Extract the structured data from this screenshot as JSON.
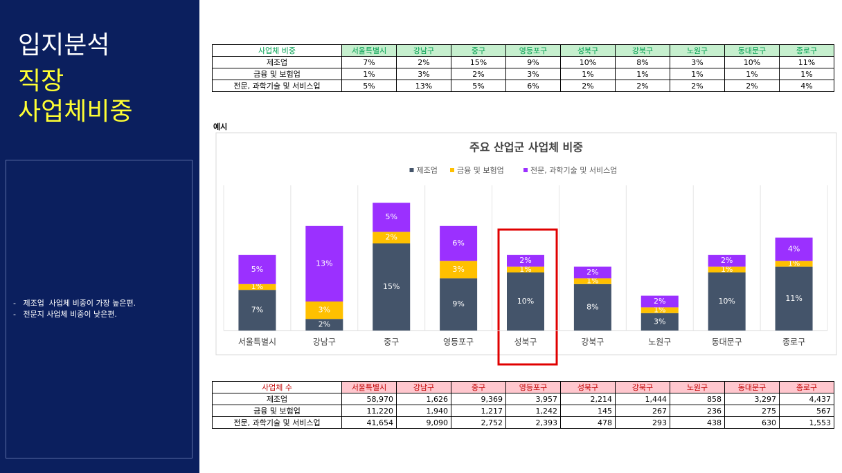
{
  "sidebar": {
    "title": "입지분석",
    "subtitle_lines": [
      "직장",
      "사업체비중"
    ],
    "notes": [
      "-   제조업  사업체 비중이 가장 높은편.",
      "-   전문지 사업체 비중이 낮은편."
    ]
  },
  "table_share": {
    "header": [
      "사업체 비중",
      "서울특별시",
      "강남구",
      "중구",
      "영등포구",
      "성북구",
      "강북구",
      "노원구",
      "동대문구",
      "종로구"
    ],
    "rows": [
      [
        "제조업",
        "7%",
        "2%",
        "15%",
        "9%",
        "10%",
        "8%",
        "3%",
        "10%",
        "11%"
      ],
      [
        "금융 및 보험업",
        "1%",
        "3%",
        "2%",
        "3%",
        "1%",
        "1%",
        "1%",
        "1%",
        "1%"
      ],
      [
        "전문, 과학기술 및 서비스업",
        "5%",
        "13%",
        "5%",
        "6%",
        "2%",
        "2%",
        "2%",
        "2%",
        "4%"
      ]
    ]
  },
  "example_label": "예시",
  "chart_data": {
    "type": "stacked_bar",
    "title": "주요 산업군 사업체 비중",
    "categories": [
      "서울특별시",
      "강남구",
      "중구",
      "영등포구",
      "성북구",
      "강북구",
      "노원구",
      "동대문구",
      "종로구"
    ],
    "series": [
      {
        "name": "제조업",
        "color": "#44546a",
        "values": [
          7,
          2,
          15,
          9,
          10,
          8,
          3,
          10,
          11
        ],
        "value_labels": [
          "7%",
          "2%",
          "15%",
          "9%",
          "10%",
          "8%",
          "3%",
          "10%",
          "11%"
        ]
      },
      {
        "name": "금융 및 보험업",
        "color": "#ffc000",
        "values": [
          1,
          3,
          2,
          3,
          1,
          1,
          1,
          1,
          1
        ],
        "value_labels": [
          "1%",
          "3%",
          "2%",
          "3%",
          "1%",
          "1%",
          "1%",
          "1%",
          "1%"
        ]
      },
      {
        "name": "전문, 과학기술 및 서비스업",
        "color": "#9b30ff",
        "values": [
          5,
          13,
          5,
          6,
          2,
          2,
          2,
          2,
          4
        ],
        "value_labels": [
          "5%",
          "13%",
          "5%",
          "6%",
          "2%",
          "2%",
          "2%",
          "2%",
          "4%"
        ]
      }
    ],
    "ylim": [
      0,
      25
    ],
    "legend": "top"
  },
  "table_count": {
    "header": [
      "사업체 수",
      "서울특별시",
      "강남구",
      "중구",
      "영등포구",
      "성북구",
      "강북구",
      "노원구",
      "동대문구",
      "종로구"
    ],
    "rows": [
      [
        "제조업",
        "58,970",
        "1,626",
        "9,369",
        "3,957",
        "2,214",
        "1,444",
        "858",
        "3,297",
        "4,437"
      ],
      [
        "금융 및 보험업",
        "11,220",
        "1,940",
        "1,217",
        "1,242",
        "145",
        "267",
        "236",
        "275",
        "567"
      ],
      [
        "전문, 과학기술 및 서비스업",
        "41,654",
        "9,090",
        "2,752",
        "2,393",
        "478",
        "293",
        "438",
        "630",
        "1,553"
      ]
    ]
  }
}
